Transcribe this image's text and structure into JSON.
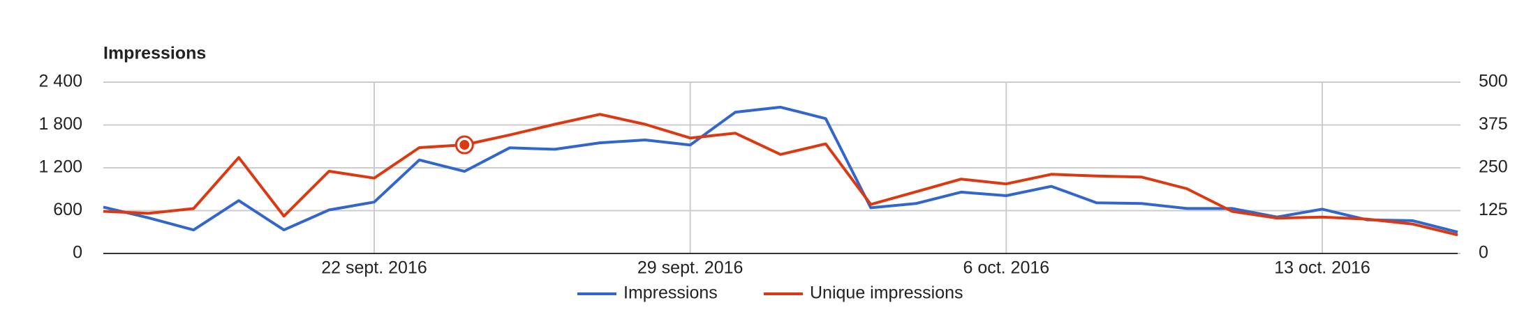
{
  "chart_data": {
    "type": "line",
    "title": "Impressions",
    "x": [
      "2016-09-16",
      "2016-09-17",
      "2016-09-18",
      "2016-09-19",
      "2016-09-20",
      "2016-09-21",
      "2016-09-22",
      "2016-09-23",
      "2016-09-24",
      "2016-09-25",
      "2016-09-26",
      "2016-09-27",
      "2016-09-28",
      "2016-09-29",
      "2016-09-30",
      "2016-10-01",
      "2016-10-02",
      "2016-10-03",
      "2016-10-04",
      "2016-10-05",
      "2016-10-06",
      "2016-10-07",
      "2016-10-08",
      "2016-10-09",
      "2016-10-10",
      "2016-10-11",
      "2016-10-12",
      "2016-10-13",
      "2016-10-14",
      "2016-10-15",
      "2016-10-16"
    ],
    "xlim": [
      "2016-09-16",
      "2016-10-16"
    ],
    "xticks": [
      {
        "value": "2016-09-22",
        "label": "22 sept. 2016"
      },
      {
        "value": "2016-09-29",
        "label": "29 sept. 2016"
      },
      {
        "value": "2016-10-06",
        "label": "6 oct. 2016"
      },
      {
        "value": "2016-10-13",
        "label": "13 oct. 2016"
      }
    ],
    "ylim": [
      0,
      2400
    ],
    "yticks": [
      0,
      600,
      {
        "value": 1200,
        "label": "1 200"
      },
      {
        "value": 1800,
        "label": "1 800"
      },
      {
        "value": 2400,
        "label": "2 400"
      }
    ],
    "y2lim": [
      0,
      500
    ],
    "y2ticks": [
      0,
      125,
      250,
      375,
      500
    ],
    "grid": true,
    "legend": "bottom",
    "series": [
      {
        "name": "Impressions",
        "color": "#3366cc",
        "axis": "y",
        "values": [
          650,
          500,
          330,
          740,
          330,
          610,
          720,
          1310,
          1150,
          1480,
          1460,
          1550,
          1590,
          1520,
          1980,
          2050,
          1890,
          640,
          700,
          860,
          810,
          940,
          710,
          700,
          630,
          630,
          510,
          620,
          470,
          460,
          300
        ]
      },
      {
        "name": "Unique impressions",
        "color": "#dc3912",
        "axis": "y2",
        "values": [
          123,
          117,
          131,
          280,
          109,
          240,
          220,
          309,
          317,
          346,
          377,
          406,
          377,
          337,
          351,
          289,
          320,
          143,
          180,
          217,
          203,
          231,
          226,
          223,
          189,
          123,
          103,
          106,
          100,
          86,
          54
        ]
      }
    ]
  }
}
